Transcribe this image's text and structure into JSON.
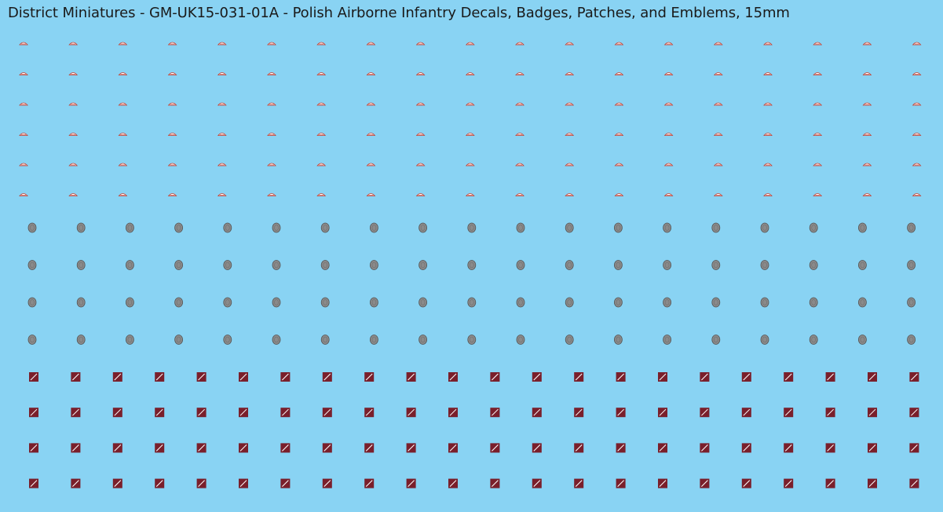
{
  "sheet": {
    "title": "District Miniatures - GM-UK15-031-01A - Polish Airborne Infantry Decals, Badges, Patches, and Emblems, 15mm"
  },
  "colors": {
    "background": "#89d3f3",
    "title_text": "#1a1a1a",
    "shoulder_title_fill": "#ffffff",
    "shoulder_title_stroke": "#c0392b",
    "shoulder_title_text": "#c0392b",
    "beret_badge_fill": "#8a8a8a",
    "beret_badge_stroke": "#555555",
    "patch_fill": "#7a1f2b",
    "patch_stripe": "#ffffff"
  },
  "decal_groups": [
    {
      "name": "shoulder-title",
      "icon": "shoulder-title-decal",
      "rows": 6,
      "columns": 19
    },
    {
      "name": "beret-badge",
      "icon": "eagle-badge-decal",
      "rows": 4,
      "columns": 19
    },
    {
      "name": "unit-patch",
      "icon": "square-patch-decal",
      "rows": 4,
      "columns": 22
    }
  ]
}
